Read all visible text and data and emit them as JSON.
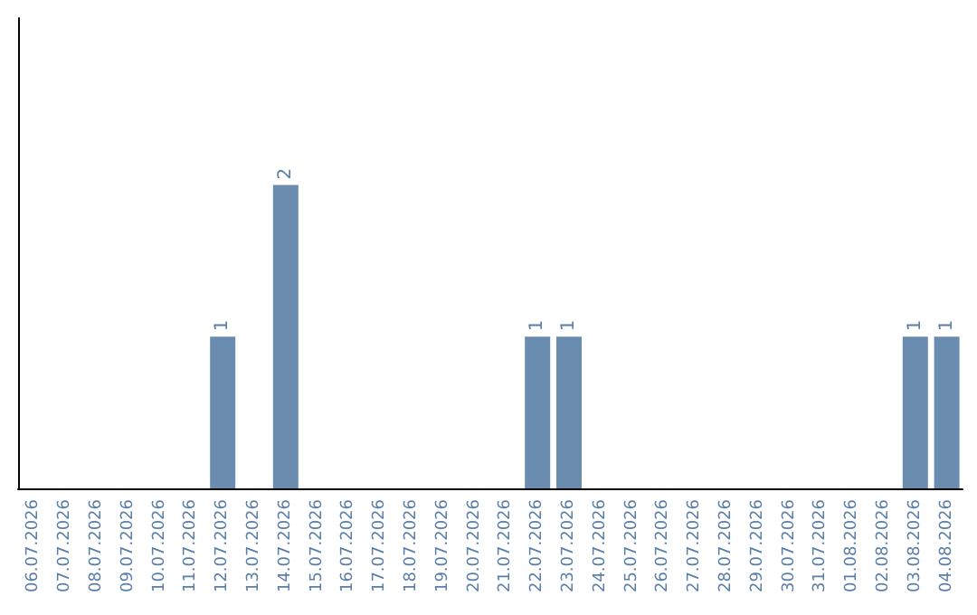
{
  "chart_data": {
    "type": "bar",
    "categories": [
      "06.07.2026",
      "07.07.2026",
      "08.07.2026",
      "09.07.2026",
      "10.07.2026",
      "11.07.2026",
      "12.07.2026",
      "13.07.2026",
      "14.07.2026",
      "15.07.2026",
      "16.07.2026",
      "17.07.2026",
      "18.07.2026",
      "19.07.2026",
      "20.07.2026",
      "21.07.2026",
      "22.07.2026",
      "23.07.2026",
      "24.07.2026",
      "25.07.2026",
      "26.07.2026",
      "27.07.2026",
      "28.07.2026",
      "29.07.2026",
      "30.07.2026",
      "31.07.2026",
      "01.08.2026",
      "02.08.2026",
      "03.08.2026",
      "04.08.2026"
    ],
    "values": [
      0,
      0,
      0,
      0,
      0,
      0,
      1,
      0,
      2,
      0,
      0,
      0,
      0,
      0,
      0,
      0,
      1,
      1,
      0,
      0,
      0,
      0,
      0,
      0,
      0,
      0,
      0,
      0,
      1,
      1
    ],
    "value_labels": [
      null,
      null,
      null,
      null,
      null,
      null,
      "1",
      null,
      "2",
      null,
      null,
      null,
      null,
      null,
      null,
      null,
      "1",
      "1",
      null,
      null,
      null,
      null,
      null,
      null,
      null,
      null,
      null,
      null,
      "1",
      "1"
    ],
    "color": "#6a8caf",
    "ylim": [
      0,
      3.1
    ],
    "tick_labels": "x"
  }
}
